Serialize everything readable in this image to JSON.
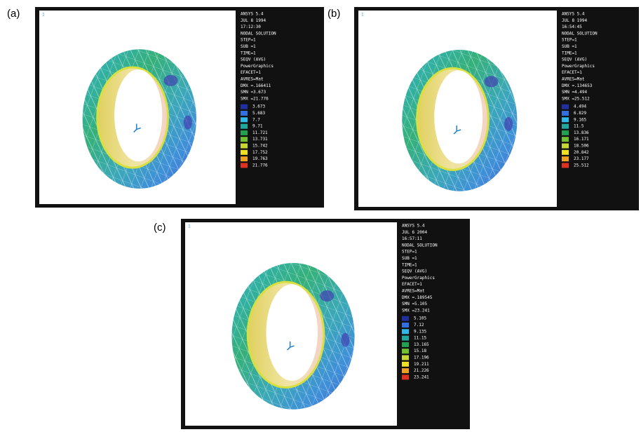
{
  "panels": [
    {
      "label": "(a)",
      "window_id": "1",
      "header": [
        "ANSYS 5.4",
        "JUL  8 1994",
        "17:12:30",
        "NODAL SOLUTION",
        "STEP=1",
        "SUB =1",
        "TIME=1",
        "SEQV     (AVG)",
        "PowerGraphics",
        "EFACET=1",
        "AVRES=Mat",
        "DMX =.166411",
        "SMN =3.673",
        "SMX =21.776"
      ],
      "legend": [
        "3.673",
        "5.683",
        "7.7",
        "9.71",
        "11.721",
        "13.731",
        "15.742",
        "17.752",
        "19.763",
        "21.776"
      ]
    },
    {
      "label": "(b)",
      "window_id": "1",
      "header": [
        "ANSYS 5.4",
        "JUL  8 1994",
        "16:54:45",
        "NODAL SOLUTION",
        "STEP=1",
        "SUB =1",
        "TIME=1",
        "SEQV     (AVG)",
        "PowerGraphics",
        "EFACET=1",
        "AVRES=Mat",
        "DMX =.134653",
        "SMN =4.494",
        "SMX =25.512"
      ],
      "legend": [
        "4.494",
        "6.829",
        "9.165",
        "11.5",
        "13.836",
        "16.171",
        "18.506",
        "20.842",
        "23.177",
        "25.512"
      ]
    },
    {
      "label": "(c)",
      "window_id": "1",
      "header": [
        "ANSYS 5.4",
        "JUL  6 2004",
        "16:57:11",
        "NODAL SOLUTION",
        "STEP=1",
        "SUB =1",
        "TIME=1",
        "SEQV     (AVG)",
        "PowerGraphics",
        "EFACET=1",
        "AVRES=Mat",
        "DMX =.189545",
        "SMN =5.105",
        "SMX =23.241"
      ],
      "legend": [
        "5.105",
        "7.12",
        "9.135",
        "11.15",
        "13.165",
        "15.18",
        "17.196",
        "19.211",
        "21.226",
        "23.241"
      ]
    }
  ]
}
